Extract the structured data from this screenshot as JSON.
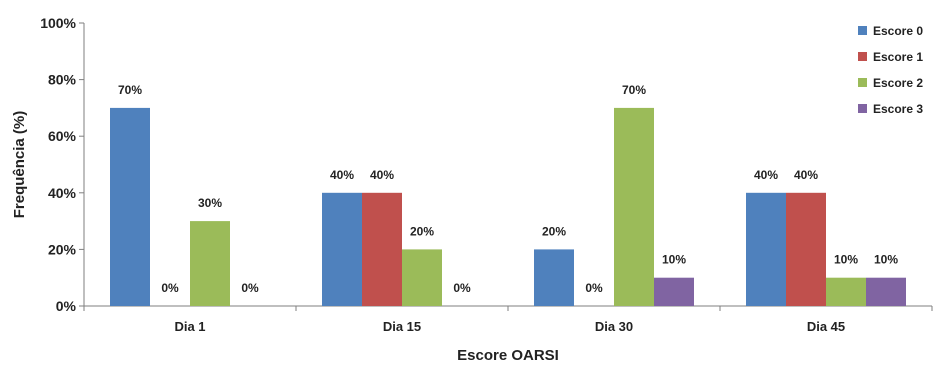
{
  "chart_data": {
    "type": "bar",
    "categories": [
      "Dia 1",
      "Dia 15",
      "Dia 30",
      "Dia 45"
    ],
    "series": [
      {
        "name": "Escore 0",
        "values": [
          70,
          40,
          20,
          40
        ],
        "color": "#4f81bd"
      },
      {
        "name": "Escore 1",
        "values": [
          0,
          40,
          0,
          40
        ],
        "color": "#c0504d"
      },
      {
        "name": "Escore 2",
        "values": [
          30,
          20,
          70,
          10
        ],
        "color": "#9bbb59"
      },
      {
        "name": "Escore 3",
        "values": [
          0,
          0,
          10,
          10
        ],
        "color": "#8064a2"
      }
    ],
    "title": "",
    "xlabel": "Escore OARSI",
    "ylabel": "Frequência (%)",
    "ylim": [
      0,
      100
    ],
    "yticks": [
      "0%",
      "20%",
      "40%",
      "60%",
      "80%",
      "100%"
    ],
    "value_suffix": "%",
    "legend_position": "top-right",
    "grid": false
  }
}
